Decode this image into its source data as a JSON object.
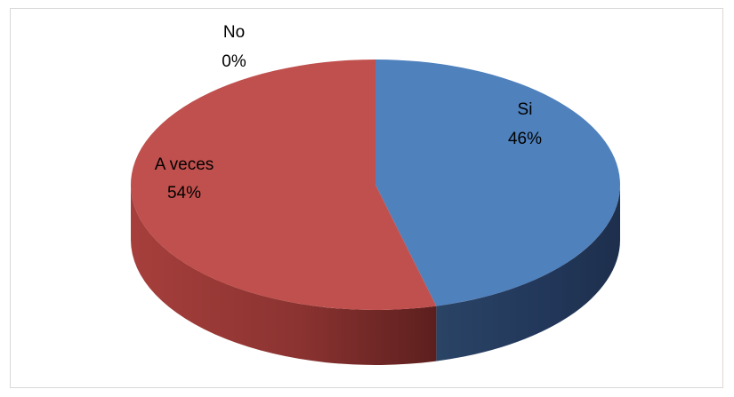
{
  "chart_data": {
    "type": "pie",
    "title": "",
    "three_d": true,
    "legend": "none",
    "categories": [
      "Si",
      "A veces",
      "No"
    ],
    "values": [
      46,
      54,
      0
    ],
    "labels": [
      {
        "name": "Si",
        "percent": "46%"
      },
      {
        "name": "A veces",
        "percent": "54%"
      },
      {
        "name": "No",
        "percent": "0%"
      }
    ],
    "colors": {
      "Si": "#4f81bd",
      "A veces": "#c0504d",
      "No": "#9bbb59"
    }
  }
}
